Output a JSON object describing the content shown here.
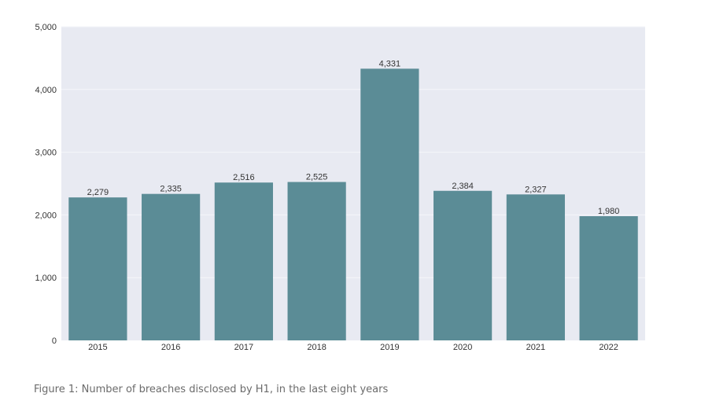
{
  "caption": "Figure 1: Number of breaches disclosed by H1, in the last eight years",
  "colors": {
    "bar": "#5b8c96",
    "plot_background": "#e8eaf2",
    "gridline": "#f5f6fa",
    "tick_text": "#333333"
  },
  "chart_data": {
    "type": "bar",
    "categories": [
      "2015",
      "2016",
      "2017",
      "2018",
      "2019",
      "2020",
      "2021",
      "2022"
    ],
    "values": [
      2279,
      2335,
      2516,
      2525,
      4331,
      2384,
      2327,
      1980
    ],
    "value_labels": [
      "2,279",
      "2,335",
      "2,516",
      "2,525",
      "4,331",
      "2,384",
      "2,327",
      "1,980"
    ],
    "title": "",
    "xlabel": "",
    "ylabel": "",
    "ylim": [
      0,
      5000
    ],
    "yticks": [
      0,
      1000,
      2000,
      3000,
      4000,
      5000
    ],
    "ytick_labels": [
      "0",
      "1,000",
      "2,000",
      "3,000",
      "4,000",
      "5,000"
    ],
    "grid": true,
    "legend": "none"
  }
}
